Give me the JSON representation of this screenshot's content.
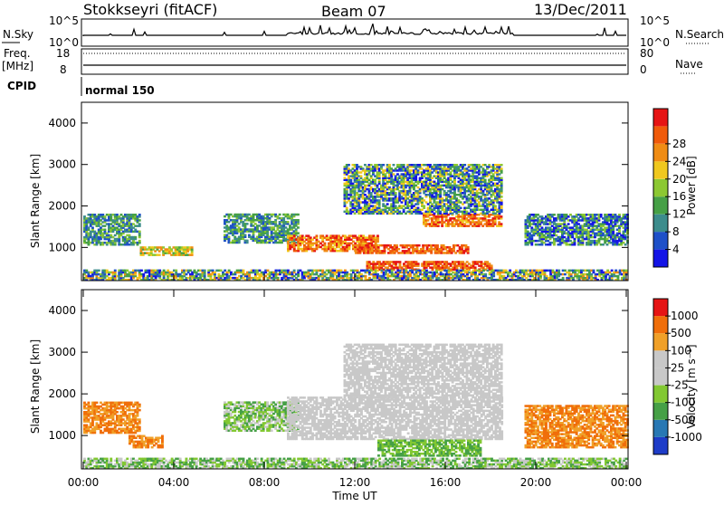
{
  "header": {
    "title": "Stokkseyri (fitACF)",
    "beam": "Beam 07",
    "date": "13/Dec/2011"
  },
  "strip_nsky": {
    "left_label": "N.Sky",
    "right_label": "N.Search",
    "left_ticks": [
      "10^5",
      "10^0"
    ],
    "right_ticks": [
      "10^5",
      "10^0"
    ]
  },
  "strip_freq": {
    "left_label_1": "Freq.",
    "left_label_2": "[MHz]",
    "left_ticks": [
      "18",
      "8"
    ],
    "right_label": "Nave",
    "right_ticks": [
      "80",
      "0"
    ]
  },
  "strip_cpid": {
    "label": "CPID",
    "program": "normal 150"
  },
  "colors": {
    "power": [
      "#1414e6",
      "#1e50c8",
      "#3c8c8c",
      "#46a046",
      "#8cc832",
      "#f0c81e",
      "#f08c14",
      "#f05a0a",
      "#e61414"
    ],
    "velocity": [
      "#e61414",
      "#f06e0a",
      "#f0a028",
      "#c8c8c8",
      "#c8c8c8",
      "#82c832",
      "#46a046",
      "#2878b4",
      "#1e3cc8"
    ]
  },
  "chart_data": [
    {
      "type": "heatmap",
      "name": "power",
      "ylabel": "Slant Range [km]",
      "xlabel": "",
      "ylim": [
        200,
        4500
      ],
      "yticks": [
        "1000",
        "2000",
        "3000",
        "4000"
      ],
      "colorbar_label": "Power [dB]",
      "colorbar_ticks": [
        "4",
        "8",
        "12",
        "16",
        "20",
        "24",
        "28"
      ],
      "regions": [
        {
          "t0": 0.0,
          "t1": 2.5,
          "r0": 1050,
          "r1": 1800,
          "level": [
            1,
            4
          ]
        },
        {
          "t0": 2.5,
          "t1": 4.8,
          "r0": 800,
          "r1": 1000,
          "level": [
            3,
            6
          ]
        },
        {
          "t0": 6.2,
          "t1": 9.5,
          "r0": 1100,
          "r1": 1800,
          "level": [
            1,
            4
          ]
        },
        {
          "t0": 9.0,
          "t1": 13.0,
          "r0": 900,
          "r1": 1300,
          "level": [
            5,
            8
          ]
        },
        {
          "t0": 12.0,
          "t1": 17.0,
          "r0": 850,
          "r1": 1050,
          "level": [
            6,
            8
          ]
        },
        {
          "t0": 12.5,
          "t1": 18.0,
          "r0": 450,
          "r1": 650,
          "level": [
            6,
            8
          ]
        },
        {
          "t0": 15.0,
          "t1": 18.5,
          "r0": 1500,
          "r1": 1800,
          "level": [
            5,
            8
          ]
        },
        {
          "t0": 11.5,
          "t1": 18.5,
          "r0": 1800,
          "r1": 3000,
          "level": [
            0,
            5
          ]
        },
        {
          "t0": 19.5,
          "t1": 24.0,
          "r0": 1050,
          "r1": 1800,
          "level": [
            0,
            4
          ]
        },
        {
          "t0": 0.0,
          "t1": 24.0,
          "r0": 200,
          "r1": 450,
          "level": [
            0,
            6
          ]
        }
      ]
    },
    {
      "type": "heatmap",
      "name": "velocity",
      "ylabel": "Slant Range [km]",
      "xlabel": "Time UT",
      "ylim": [
        200,
        4500
      ],
      "yticks": [
        "1000",
        "2000",
        "3000",
        "4000"
      ],
      "xticks": [
        "00:00",
        "04:00",
        "08:00",
        "12:00",
        "16:00",
        "20:00",
        "00:00"
      ],
      "xlim": [
        0,
        24
      ],
      "colorbar_label": "Velocity [m s⁻¹]",
      "colorbar_ticks": [
        "1000",
        "500",
        "100",
        "25",
        "-25",
        "-100",
        "-500",
        "-1000"
      ],
      "regions": [
        {
          "t0": 0.0,
          "t1": 2.5,
          "r0": 1050,
          "r1": 1800,
          "level": [
            1,
            2
          ]
        },
        {
          "t0": 2.0,
          "t1": 3.5,
          "r0": 700,
          "r1": 1000,
          "level": [
            1,
            2
          ]
        },
        {
          "t0": 6.2,
          "t1": 9.5,
          "r0": 1100,
          "r1": 1800,
          "level": [
            4,
            6
          ]
        },
        {
          "t0": 9.0,
          "t1": 18.5,
          "r0": 900,
          "r1": 1900,
          "level": [
            3,
            4
          ]
        },
        {
          "t0": 13.0,
          "t1": 17.5,
          "r0": 500,
          "r1": 900,
          "level": [
            5,
            6
          ]
        },
        {
          "t0": 19.5,
          "t1": 24.0,
          "r0": 700,
          "r1": 1700,
          "level": [
            1,
            2
          ]
        },
        {
          "t0": 11.5,
          "t1": 18.5,
          "r0": 1900,
          "r1": 3200,
          "level": [
            3,
            4
          ]
        },
        {
          "t0": 0.0,
          "t1": 24.0,
          "r0": 200,
          "r1": 450,
          "level": [
            4,
            6
          ]
        }
      ]
    }
  ]
}
